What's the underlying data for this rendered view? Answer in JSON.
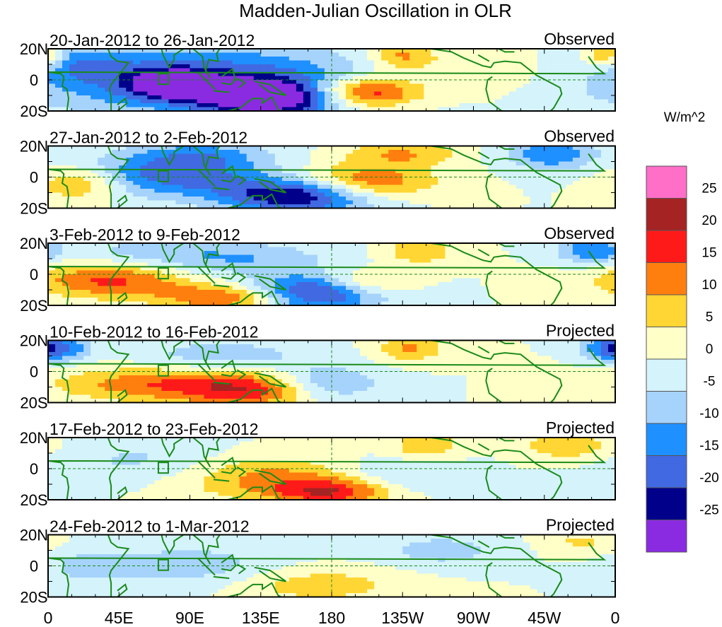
{
  "chart_data": {
    "type": "heatmap",
    "title": "Madden-Julian Oscillation in OLR",
    "units_label": "W/m^2",
    "x_ticks": [
      "0",
      "45E",
      "90E",
      "135E",
      "180",
      "135W",
      "90W",
      "45W",
      "0"
    ],
    "x_range_deg": [
      0,
      360
    ],
    "y_ticks": [
      "20N",
      "0",
      "20S"
    ],
    "y_range_deg": [
      -20,
      20
    ],
    "colorbar": {
      "levels": [
        "25",
        "20",
        "15",
        "10",
        "5",
        "0",
        "-5",
        "-10",
        "-15",
        "-20",
        "-25"
      ],
      "colors": [
        "#ff6ec7",
        "#a52323",
        "#ff1a1a",
        "#ff7f0e",
        "#ffd633",
        "#ffffc8",
        "#d4f3fb",
        "#a6d3fb",
        "#1f90ff",
        "#4169e1",
        "#00008b",
        "#8a2be2"
      ]
    },
    "panels": [
      {
        "date_range": "20-Jan-2012 to 26-Jan-2012",
        "status": "Observed",
        "features": [
          {
            "lon": 100,
            "lat": 0,
            "value": -20,
            "rlon": 80,
            "rlat": 15
          },
          {
            "lon": 80,
            "lat": -3,
            "value": -25,
            "rlon": 18,
            "rlat": 6
          },
          {
            "lon": 140,
            "lat": -12,
            "value": -28,
            "rlon": 30,
            "rlat": 8
          },
          {
            "lon": 200,
            "lat": -8,
            "value": 24,
            "rlon": 25,
            "rlat": 7
          },
          {
            "lon": 225,
            "lat": 15,
            "value": 12,
            "rlon": 15,
            "rlat": 6
          },
          {
            "lon": 355,
            "lat": 15,
            "value": 14,
            "rlon": 10,
            "rlat": 6
          },
          {
            "lon": 20,
            "lat": 10,
            "value": -8,
            "rlon": 20,
            "rlat": 8
          },
          {
            "lon": 270,
            "lat": 5,
            "value": 4,
            "rlon": 60,
            "rlat": 12
          }
        ]
      },
      {
        "date_range": "27-Jan-2012 to 2-Feb-2012",
        "status": "Observed",
        "features": [
          {
            "lon": 80,
            "lat": 2,
            "value": -18,
            "rlon": 40,
            "rlat": 10
          },
          {
            "lon": 160,
            "lat": -12,
            "value": -27,
            "rlon": 35,
            "rlat": 8
          },
          {
            "lon": 200,
            "lat": -4,
            "value": 18,
            "rlon": 30,
            "rlat": 8
          },
          {
            "lon": 20,
            "lat": -4,
            "value": 12,
            "rlon": 20,
            "rlat": 8
          },
          {
            "lon": 225,
            "lat": 15,
            "value": 10,
            "rlon": 25,
            "rlat": 6
          },
          {
            "lon": 320,
            "lat": 15,
            "value": -15,
            "rlon": 20,
            "rlat": 7
          },
          {
            "lon": 100,
            "lat": 15,
            "value": -8,
            "rlon": 30,
            "rlat": 6
          }
        ]
      },
      {
        "date_range": "3-Feb-2012 to 9-Feb-2012",
        "status": "Observed",
        "features": [
          {
            "lon": 40,
            "lat": -4,
            "value": 16,
            "rlon": 35,
            "rlat": 8
          },
          {
            "lon": 115,
            "lat": -15,
            "value": 16,
            "rlon": 30,
            "rlat": 6
          },
          {
            "lon": 170,
            "lat": -12,
            "value": -25,
            "rlon": 30,
            "rlat": 8
          },
          {
            "lon": 200,
            "lat": -6,
            "value": 12,
            "rlon": 20,
            "rlat": 6
          },
          {
            "lon": 235,
            "lat": 15,
            "value": 10,
            "rlon": 15,
            "rlat": 6
          },
          {
            "lon": 345,
            "lat": 15,
            "value": -15,
            "rlon": 15,
            "rlat": 6
          },
          {
            "lon": 120,
            "lat": 10,
            "value": -10,
            "rlon": 40,
            "rlat": 8
          },
          {
            "lon": 60,
            "lat": 15,
            "value": -6,
            "rlon": 30,
            "rlat": 6
          }
        ]
      },
      {
        "date_range": "10-Feb-2012 to 16-Feb-2012",
        "status": "Projected",
        "features": [
          {
            "lon": 70,
            "lat": -8,
            "value": 14,
            "rlon": 45,
            "rlat": 8
          },
          {
            "lon": 130,
            "lat": -12,
            "value": 16,
            "rlon": 30,
            "rlat": 8
          },
          {
            "lon": 175,
            "lat": -8,
            "value": -12,
            "rlon": 25,
            "rlat": 8
          },
          {
            "lon": 230,
            "lat": 15,
            "value": 11,
            "rlon": 15,
            "rlat": 6
          },
          {
            "lon": 355,
            "lat": 15,
            "value": -14,
            "rlon": 12,
            "rlat": 6
          },
          {
            "lon": 10,
            "lat": 15,
            "value": -12,
            "rlon": 12,
            "rlat": 6
          },
          {
            "lon": 110,
            "lat": 10,
            "value": -8,
            "rlon": 40,
            "rlat": 8
          }
        ]
      },
      {
        "date_range": "17-Feb-2012 to 23-Feb-2012",
        "status": "Projected",
        "features": [
          {
            "lon": 140,
            "lat": -6,
            "value": 12,
            "rlon": 40,
            "rlat": 10
          },
          {
            "lon": 180,
            "lat": -15,
            "value": 17,
            "rlon": 25,
            "rlat": 6
          },
          {
            "lon": 240,
            "lat": 15,
            "value": 10,
            "rlon": 15,
            "rlat": 6
          },
          {
            "lon": 330,
            "lat": 15,
            "value": 10,
            "rlon": 20,
            "rlat": 6
          },
          {
            "lon": 60,
            "lat": 5,
            "value": -6,
            "rlon": 40,
            "rlat": 10
          },
          {
            "lon": 220,
            "lat": -4,
            "value": -6,
            "rlon": 30,
            "rlat": 8
          }
        ]
      },
      {
        "date_range": "24-Feb-2012 to 1-Mar-2012",
        "status": "Projected",
        "features": [
          {
            "lon": 170,
            "lat": -12,
            "value": 8,
            "rlon": 40,
            "rlat": 8
          },
          {
            "lon": 90,
            "lat": 0,
            "value": -8,
            "rlon": 40,
            "rlat": 10
          },
          {
            "lon": 250,
            "lat": 10,
            "value": -7,
            "rlon": 30,
            "rlat": 8
          },
          {
            "lon": 340,
            "lat": 15,
            "value": 6,
            "rlon": 20,
            "rlat": 6
          },
          {
            "lon": 20,
            "lat": 0,
            "value": -5,
            "rlon": 20,
            "rlat": 10
          }
        ]
      }
    ]
  }
}
